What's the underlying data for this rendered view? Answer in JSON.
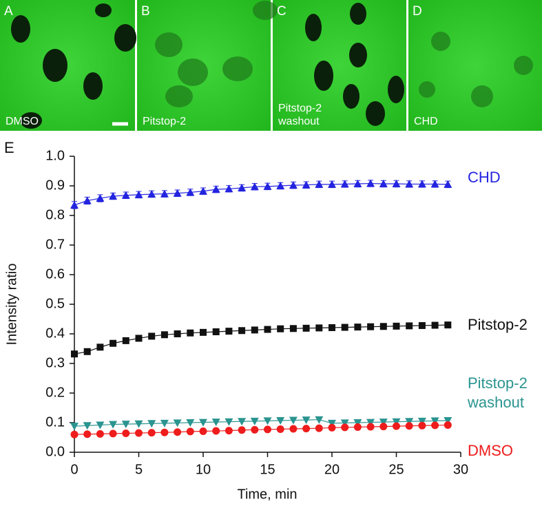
{
  "panels": [
    {
      "letter": "A",
      "label": "DMSO"
    },
    {
      "letter": "B",
      "label": "Pitstop-2"
    },
    {
      "letter": "C",
      "label": "Pitstop-2 washout"
    },
    {
      "letter": "D",
      "label": "CHD"
    }
  ],
  "chart_data": {
    "type": "line",
    "panel_letter": "E",
    "x_label": "Time, min",
    "y_label": "Intensity ratio",
    "xlim": [
      0,
      30
    ],
    "xticks": [
      0,
      5,
      10,
      15,
      20,
      25,
      30
    ],
    "ylim": [
      0,
      1
    ],
    "yticks": [
      {
        "value": 0,
        "label": "0.0"
      },
      0.1,
      0.2,
      0.3,
      0.4,
      0.5,
      0.6,
      0.7,
      0.8,
      0.9,
      {
        "value": 1,
        "label": "1.0"
      }
    ],
    "x": [
      0,
      1,
      2,
      3,
      4,
      5,
      6,
      7,
      8,
      9,
      10,
      11,
      12,
      13,
      14,
      15,
      16,
      17,
      18,
      19,
      20,
      21,
      22,
      23,
      24,
      25,
      26,
      27,
      28,
      29
    ],
    "series": [
      {
        "name": "CHD",
        "color": "#2424e0",
        "marker": "triangle-up",
        "values": [
          0.835,
          0.85,
          0.858,
          0.865,
          0.868,
          0.87,
          0.872,
          0.873,
          0.875,
          0.878,
          0.882,
          0.888,
          0.89,
          0.893,
          0.897,
          0.898,
          0.9,
          0.902,
          0.903,
          0.905,
          0.905,
          0.906,
          0.907,
          0.908,
          0.907,
          0.907,
          0.906,
          0.906,
          0.906,
          0.905
        ],
        "errors": [
          0.012,
          0.012,
          0.012,
          0.011,
          0.011,
          0.011,
          0.011,
          0.011,
          0.011,
          0.011,
          0.011,
          0.011,
          0.011,
          0.011,
          0.011,
          0.011,
          0.011,
          0.011,
          0.011,
          0.011,
          0.011,
          0.011,
          0.011,
          0.011,
          0.011,
          0.011,
          0.011,
          0.011,
          0.011,
          0.011
        ]
      },
      {
        "name": "Pitstop-2",
        "color": "#111111",
        "marker": "square",
        "values": [
          0.332,
          0.34,
          0.355,
          0.368,
          0.377,
          0.385,
          0.392,
          0.397,
          0.4,
          0.403,
          0.405,
          0.407,
          0.409,
          0.411,
          0.413,
          0.415,
          0.417,
          0.418,
          0.419,
          0.42,
          0.421,
          0.422,
          0.423,
          0.424,
          0.425,
          0.426,
          0.427,
          0.428,
          0.429,
          0.43
        ]
      },
      {
        "name": "Pitstop-2 washout",
        "color": "#2a9490",
        "marker": "triangle-down",
        "values": [
          0.088,
          0.09,
          0.092,
          0.094,
          0.095,
          0.096,
          0.097,
          0.098,
          0.099,
          0.1,
          0.101,
          0.102,
          0.103,
          0.104,
          0.105,
          0.106,
          0.107,
          0.108,
          0.109,
          0.11,
          0.098,
          0.099,
          0.1,
          0.101,
          0.102,
          0.103,
          0.104,
          0.105,
          0.106,
          0.107
        ]
      },
      {
        "name": "DMSO",
        "color": "#ee1c1c",
        "marker": "circle",
        "values": [
          0.06,
          0.061,
          0.062,
          0.063,
          0.064,
          0.065,
          0.066,
          0.067,
          0.068,
          0.07,
          0.071,
          0.072,
          0.073,
          0.075,
          0.076,
          0.077,
          0.078,
          0.079,
          0.08,
          0.081,
          0.083,
          0.084,
          0.085,
          0.086,
          0.087,
          0.088,
          0.089,
          0.09,
          0.091,
          0.092
        ]
      }
    ]
  }
}
